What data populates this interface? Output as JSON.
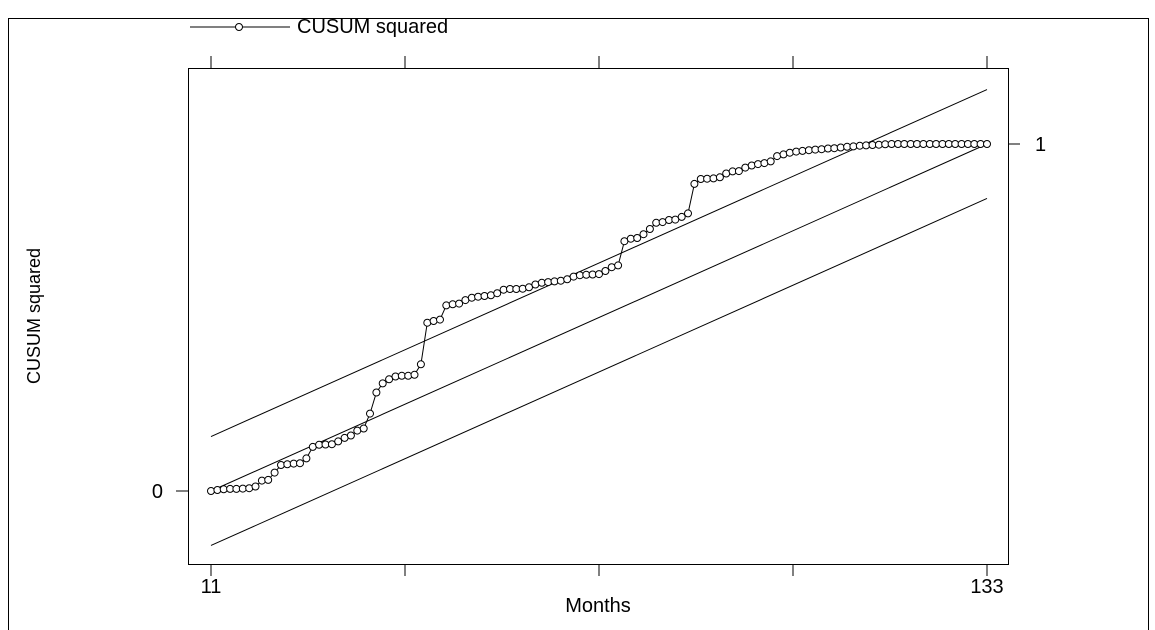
{
  "chart_data": {
    "type": "line",
    "title": "",
    "xlabel": "Months",
    "ylabel": "CUSUM squared",
    "xlim": [
      11,
      133
    ],
    "ylim": [
      -0.215,
      1.235
    ],
    "x_ticks": [
      11,
      41.5,
      72,
      102.5,
      133
    ],
    "x_tick_labels": [
      "11",
      "",
      "",
      "",
      "133"
    ],
    "y_tick_left": {
      "value": 0,
      "label": "0"
    },
    "y_tick_right": {
      "value": 1,
      "label": "1"
    },
    "grid": false,
    "legend": {
      "position": "top-left",
      "entries": [
        "CUSUM squared"
      ]
    },
    "series": [
      {
        "name": "CUSUM squared",
        "marker": "circle",
        "x": [
          11,
          12,
          13,
          14,
          15,
          16,
          17,
          18,
          19,
          20,
          21,
          22,
          23,
          24,
          25,
          26,
          27,
          28,
          29,
          30,
          31,
          32,
          33,
          34,
          35,
          36,
          37,
          38,
          39,
          40,
          41,
          42,
          43,
          44,
          45,
          46,
          47,
          48,
          49,
          50,
          51,
          52,
          53,
          54,
          55,
          56,
          57,
          58,
          59,
          60,
          61,
          62,
          63,
          64,
          65,
          66,
          67,
          68,
          69,
          70,
          71,
          72,
          73,
          74,
          75,
          76,
          77,
          78,
          79,
          80,
          81,
          82,
          83,
          84,
          85,
          86,
          87,
          88,
          89,
          90,
          91,
          92,
          93,
          94,
          95,
          96,
          97,
          98,
          99,
          100,
          101,
          102,
          103,
          104,
          105,
          106,
          107,
          108,
          109,
          110,
          111,
          112,
          113,
          114,
          115,
          116,
          117,
          118,
          119,
          120,
          121,
          122,
          123,
          124,
          125,
          126,
          127,
          128,
          129,
          130,
          131,
          132,
          133
        ],
        "y": [
          0.0,
          0.003,
          0.005,
          0.006,
          0.006,
          0.007,
          0.008,
          0.013,
          0.03,
          0.032,
          0.053,
          0.075,
          0.077,
          0.079,
          0.08,
          0.094,
          0.127,
          0.133,
          0.134,
          0.135,
          0.143,
          0.153,
          0.16,
          0.174,
          0.18,
          0.223,
          0.284,
          0.31,
          0.322,
          0.33,
          0.332,
          0.332,
          0.335,
          0.365,
          0.485,
          0.49,
          0.494,
          0.535,
          0.538,
          0.54,
          0.55,
          0.557,
          0.56,
          0.562,
          0.564,
          0.57,
          0.58,
          0.582,
          0.582,
          0.583,
          0.587,
          0.595,
          0.6,
          0.602,
          0.604,
          0.606,
          0.61,
          0.618,
          0.622,
          0.623,
          0.624,
          0.625,
          0.634,
          0.645,
          0.65,
          0.72,
          0.727,
          0.729,
          0.74,
          0.755,
          0.773,
          0.775,
          0.781,
          0.782,
          0.79,
          0.8,
          0.885,
          0.899,
          0.9,
          0.901,
          0.904,
          0.915,
          0.921,
          0.922,
          0.932,
          0.938,
          0.942,
          0.945,
          0.95,
          0.965,
          0.97,
          0.975,
          0.978,
          0.98,
          0.982,
          0.984,
          0.985,
          0.987,
          0.988,
          0.99,
          0.992,
          0.993,
          0.995,
          0.996,
          0.997,
          0.998,
          0.999,
          1.0,
          1.0,
          1.0,
          1.0,
          1.0,
          1.0,
          1.0,
          1.0,
          1.0,
          1.0,
          1.0,
          1.0,
          1.0,
          1.0,
          1.0,
          1.0
        ]
      }
    ],
    "reference_lines": [
      {
        "from": [
          11,
          0.157
        ],
        "to": [
          133,
          1.157
        ]
      },
      {
        "from": [
          11,
          0.0
        ],
        "to": [
          133,
          1.0
        ]
      },
      {
        "from": [
          11,
          -0.157
        ],
        "to": [
          133,
          0.843
        ]
      }
    ]
  }
}
